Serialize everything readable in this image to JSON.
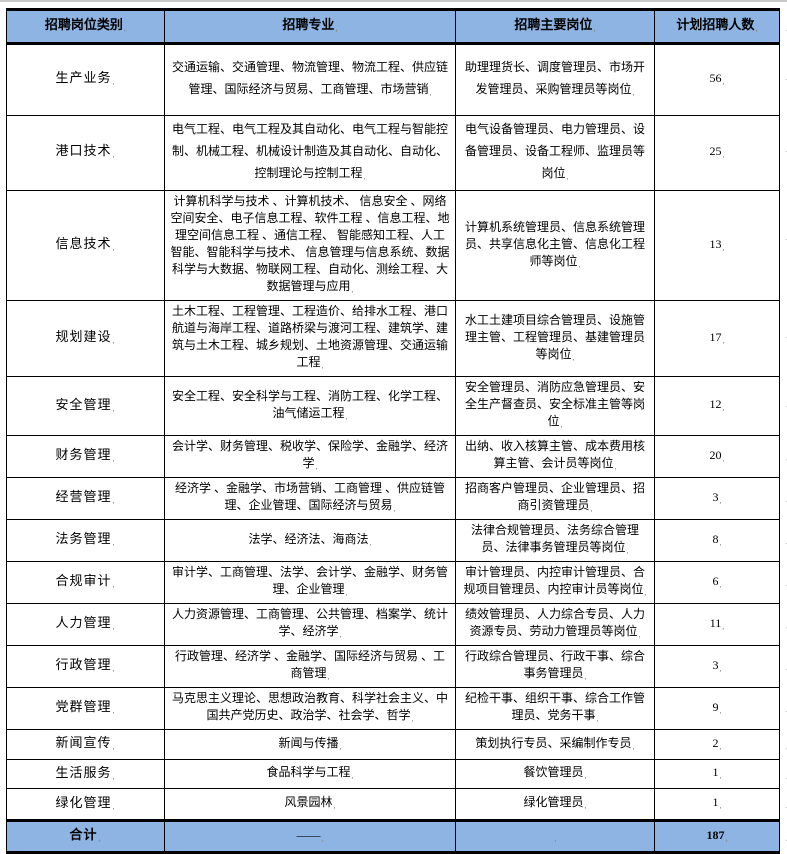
{
  "colors": {
    "header_bg": "#8DB4E2",
    "border": "#000000",
    "top_rule": "#C8C8C8",
    "text": "#000000"
  },
  "table": {
    "header": {
      "columns": [
        "招聘岗位类别",
        "招聘专业",
        "招聘主要岗位",
        "计划招聘人数"
      ]
    },
    "rows": [
      {
        "category": "生产业务",
        "majors": "交通运输、交通管理、物流管理、物流工程、供应链管理、国际经济与贸易、工商管理、市场营销",
        "positions": "助理理货长、调度管理员、市场开发管理员、采购管理员等岗位",
        "count": "56"
      },
      {
        "category": "港口技术",
        "majors": "电气工程、电气工程及其自动化、电气工程与智能控制、机械工程、机械设计制造及其自动化、自动化、控制理论与控制工程",
        "positions": "电气设备管理员、电力管理员、设备管理员、设备工程师、监理员等岗位",
        "count": "25"
      },
      {
        "category": "信息技术",
        "majors": "计算机科学与技术 、计算机技术、 信息安全 、网络空间安全、电子信息工程、软件工程 、信息工程、地理空间信息工程 、通信工程、 智能感知工程、人工智能、智能科学与技术、 信息管理与信息系统、数据科学与大数据、物联网工程、自动化、测绘工程、大数据管理与应用",
        "positions": "计算机系统管理员、信息系统管理员、共享信息化主管、信息化工程师等岗位",
        "count": "13"
      },
      {
        "category": "规划建设",
        "majors": "土木工程、工程管理、工程造价、给排水工程、港口航道与海岸工程、道路桥梁与渡河工程、建筑学、建筑与土木工程、城乡规划、土地资源管理、交通运输工程",
        "positions": "水工土建项目综合管理员、设施管理主管、工程管理员、基建管理员等岗位",
        "count": "17"
      },
      {
        "category": "安全管理",
        "majors": "安全工程、安全科学与工程、消防工程、化学工程、油气储运工程",
        "positions": "安全管理员、消防应急管理员、安全生产督查员、安全标准主管等岗位",
        "count": "12"
      },
      {
        "category": "财务管理",
        "majors": "会计学、财务管理、税收学、保险学、金融学、经济学",
        "positions": "出纳、收入核算主管、成本费用核算主管、会计员等岗位",
        "count": "20"
      },
      {
        "category": "经营管理",
        "majors": "经济学 、金融学、市场营销、工商管理 、供应链管理、企业管理、国际经济与贸易",
        "positions": "招商客户管理员、企业管理员、招商引资管理员",
        "count": "3"
      },
      {
        "category": "法务管理",
        "majors": "法学、经济法、海商法",
        "positions": "法律合规管理员、法务综合管理员、法律事务管理员等岗位",
        "count": "8"
      },
      {
        "category": "合规审计",
        "majors": "审计学、工商管理、法学、会计学、金融学、财务管理、企业管理",
        "positions": "审计管理员、内控审计管理员、合规项目管理员、内控审计员等岗位",
        "count": "6"
      },
      {
        "category": "人力管理",
        "majors": "人力资源管理、工商管理、公共管理、档案学、统计学、经济学",
        "positions": "绩效管理员、人力综合专员、人力资源专员、劳动力管理员等岗位",
        "count": "11"
      },
      {
        "category": "行政管理",
        "majors": "行政管理、经济学 、金融学、国际经济与贸易 、工商管理",
        "positions": "行政综合管理员、行政干事、综合事务管理员",
        "count": "3"
      },
      {
        "category": "党群管理",
        "majors": "马克思主义理论、思想政治教育、科学社会主义、中国共产党历史、政治学、社会学、哲学",
        "positions": "纪检干事、组织干事、综合工作管理员、党务干事",
        "count": "9"
      },
      {
        "category": "新闻宣传",
        "majors": "新闻与传播",
        "positions": "策划执行专员、采编制作专员",
        "count": "2"
      },
      {
        "category": "生活服务",
        "majors": "食品科学与工程",
        "positions": "餐饮管理员",
        "count": "1"
      },
      {
        "category": "绿化管理",
        "majors": "风景园林",
        "positions": "绿化管理员",
        "count": "1"
      }
    ],
    "footer": {
      "category": "合计",
      "majors": "——",
      "positions": "",
      "count": "187"
    }
  }
}
